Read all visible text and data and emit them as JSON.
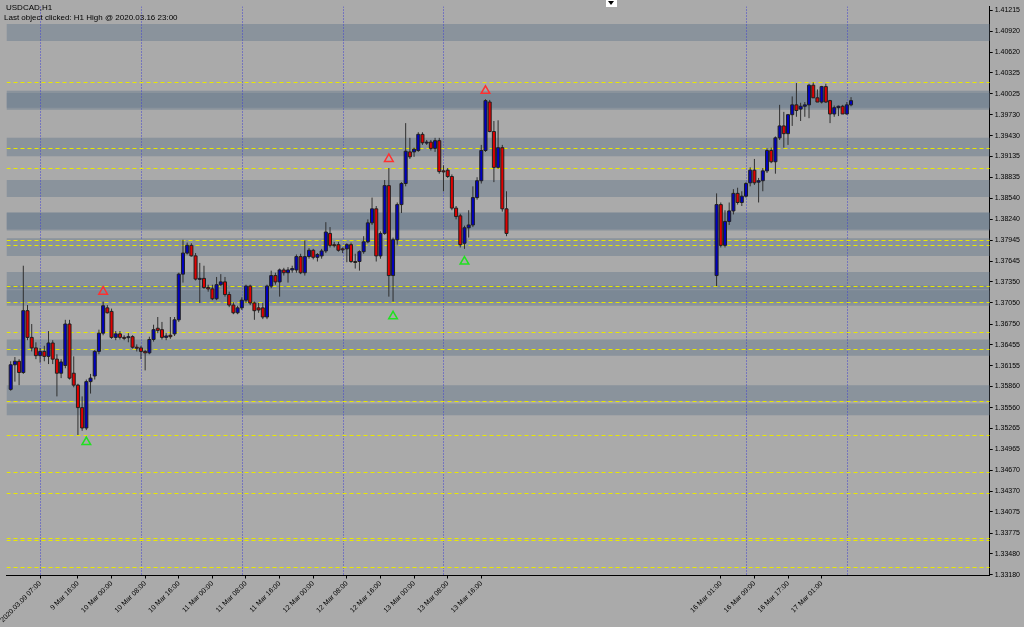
{
  "chart_data": {
    "type": "candlestick",
    "title": "USDCAD,H1",
    "subtitle": "Last object clicked: H1 High @ 2020.03.16 23:00",
    "x": [
      "2020-03-09T00:00",
      "2020-03-09T01:00",
      "2020-03-09T02:00",
      "2020-03-09T03:00",
      "2020-03-09T04:00",
      "2020-03-09T05:00",
      "2020-03-09T06:00",
      "2020-03-09T07:00",
      "2020-03-09T08:00",
      "2020-03-09T09:00",
      "2020-03-09T10:00",
      "2020-03-09T11:00",
      "2020-03-09T12:00",
      "2020-03-09T13:00",
      "2020-03-09T14:00",
      "2020-03-09T15:00",
      "2020-03-09T16:00",
      "2020-03-09T17:00",
      "2020-03-09T18:00",
      "2020-03-09T19:00",
      "2020-03-09T20:00",
      "2020-03-09T21:00",
      "2020-03-09T22:00",
      "2020-03-09T23:00",
      "2020-03-10T00:00",
      "2020-03-10T01:00",
      "2020-03-10T02:00",
      "2020-03-10T03:00",
      "2020-03-10T04:00",
      "2020-03-10T05:00",
      "2020-03-10T06:00",
      "2020-03-10T07:00",
      "2020-03-10T08:00",
      "2020-03-10T09:00",
      "2020-03-10T10:00",
      "2020-03-10T11:00",
      "2020-03-10T12:00",
      "2020-03-10T13:00",
      "2020-03-10T14:00",
      "2020-03-10T15:00",
      "2020-03-10T16:00",
      "2020-03-10T17:00",
      "2020-03-10T18:00",
      "2020-03-10T19:00",
      "2020-03-10T20:00",
      "2020-03-10T21:00",
      "2020-03-10T22:00",
      "2020-03-10T23:00",
      "2020-03-11T00:00",
      "2020-03-11T01:00",
      "2020-03-11T02:00",
      "2020-03-11T03:00",
      "2020-03-11T04:00",
      "2020-03-11T05:00",
      "2020-03-11T06:00",
      "2020-03-11T07:00",
      "2020-03-11T08:00",
      "2020-03-11T09:00",
      "2020-03-11T10:00",
      "2020-03-11T11:00",
      "2020-03-11T12:00",
      "2020-03-11T13:00",
      "2020-03-11T14:00",
      "2020-03-11T15:00",
      "2020-03-11T16:00",
      "2020-03-11T17:00",
      "2020-03-11T18:00",
      "2020-03-11T19:00",
      "2020-03-11T20:00",
      "2020-03-11T21:00",
      "2020-03-11T22:00",
      "2020-03-11T23:00",
      "2020-03-12T00:00",
      "2020-03-12T01:00",
      "2020-03-12T02:00",
      "2020-03-12T03:00",
      "2020-03-12T04:00",
      "2020-03-12T05:00",
      "2020-03-12T06:00",
      "2020-03-12T07:00",
      "2020-03-12T08:00",
      "2020-03-12T09:00",
      "2020-03-12T10:00",
      "2020-03-12T11:00",
      "2020-03-12T12:00",
      "2020-03-12T13:00",
      "2020-03-12T14:00",
      "2020-03-12T15:00",
      "2020-03-12T16:00",
      "2020-03-12T17:00",
      "2020-03-12T18:00",
      "2020-03-12T19:00",
      "2020-03-12T20:00",
      "2020-03-12T21:00",
      "2020-03-12T22:00",
      "2020-03-12T23:00",
      "2020-03-13T00:00",
      "2020-03-13T01:00",
      "2020-03-13T02:00",
      "2020-03-13T03:00",
      "2020-03-13T04:00",
      "2020-03-13T05:00",
      "2020-03-13T06:00",
      "2020-03-13T07:00",
      "2020-03-13T08:00",
      "2020-03-13T09:00",
      "2020-03-13T10:00",
      "2020-03-13T11:00",
      "2020-03-13T12:00",
      "2020-03-13T13:00",
      "2020-03-13T14:00",
      "2020-03-13T15:00",
      "2020-03-13T16:00",
      "2020-03-13T17:00",
      "2020-03-13T18:00",
      "2020-03-13T19:00",
      "2020-03-13T20:00",
      "2020-03-13T21:00",
      "2020-03-13T22:00",
      "2020-03-16T00:00",
      "2020-03-16T01:00",
      "2020-03-16T02:00",
      "2020-03-16T03:00",
      "2020-03-16T04:00",
      "2020-03-16T05:00",
      "2020-03-16T06:00",
      "2020-03-16T07:00",
      "2020-03-16T08:00",
      "2020-03-16T09:00",
      "2020-03-16T10:00",
      "2020-03-16T11:00",
      "2020-03-16T12:00",
      "2020-03-16T13:00",
      "2020-03-16T14:00",
      "2020-03-16T15:00",
      "2020-03-16T16:00",
      "2020-03-16T17:00",
      "2020-03-16T18:00",
      "2020-03-16T19:00",
      "2020-03-16T20:00",
      "2020-03-16T21:00",
      "2020-03-16T22:00",
      "2020-03-16T23:00",
      "2020-03-17T00:00",
      "2020-03-17T01:00",
      "2020-03-17T02:00",
      "2020-03-17T03:00",
      "2020-03-17T04:00",
      "2020-03-17T05:00",
      "2020-03-17T06:00",
      "2020-03-17T07:00",
      "2020-03-17T08:00"
    ],
    "ohlc": [
      [
        1.3582,
        1.3622,
        1.358,
        1.3617
      ],
      [
        1.3617,
        1.3628,
        1.3593,
        1.3622
      ],
      [
        1.3622,
        1.3625,
        1.3588,
        1.3606
      ],
      [
        1.3606,
        1.3758,
        1.3604,
        1.3694
      ],
      [
        1.3694,
        1.3702,
        1.3652,
        1.3656
      ],
      [
        1.3656,
        1.3675,
        1.3636,
        1.3641
      ],
      [
        1.3641,
        1.3649,
        1.3625,
        1.363
      ],
      [
        1.363,
        1.3641,
        1.362,
        1.3636
      ],
      [
        1.3636,
        1.3644,
        1.3622,
        1.3629
      ],
      [
        1.3629,
        1.3665,
        1.3618,
        1.3648
      ],
      [
        1.3648,
        1.3652,
        1.3618,
        1.3625
      ],
      [
        1.3625,
        1.3632,
        1.3572,
        1.3605
      ],
      [
        1.3605,
        1.3625,
        1.3598,
        1.3621
      ],
      [
        1.3616,
        1.3681,
        1.3612,
        1.3675
      ],
      [
        1.3675,
        1.3681,
        1.3596,
        1.3598
      ],
      [
        1.3605,
        1.3629,
        1.3585,
        1.3588
      ],
      [
        1.3588,
        1.359,
        1.3517,
        1.3556
      ],
      [
        1.3556,
        1.3572,
        1.3523,
        1.3527
      ],
      [
        1.3527,
        1.3596,
        1.3524,
        1.3593
      ],
      [
        1.3593,
        1.3604,
        1.3576,
        1.3598
      ],
      [
        1.3601,
        1.3638,
        1.3596,
        1.3636
      ],
      [
        1.3636,
        1.3667,
        1.3632,
        1.3662
      ],
      [
        1.3662,
        1.3707,
        1.3659,
        1.3701
      ],
      [
        1.3698,
        1.3702,
        1.369,
        1.3691
      ],
      [
        1.3693,
        1.3697,
        1.3654,
        1.3656
      ],
      [
        1.3656,
        1.3665,
        1.3652,
        1.3661
      ],
      [
        1.3661,
        1.3665,
        1.3653,
        1.3656
      ],
      [
        1.3656,
        1.3659,
        1.3652,
        1.3656
      ],
      [
        1.3656,
        1.3662,
        1.3649,
        1.3657
      ],
      [
        1.3657,
        1.3659,
        1.364,
        1.3642
      ],
      [
        1.3642,
        1.3646,
        1.3636,
        1.3641
      ],
      [
        1.3641,
        1.3644,
        1.3625,
        1.3636
      ],
      [
        1.3636,
        1.3638,
        1.3609,
        1.3634
      ],
      [
        1.3634,
        1.3657,
        1.3632,
        1.3653
      ],
      [
        1.3653,
        1.3674,
        1.365,
        1.3667
      ],
      [
        1.3669,
        1.3685,
        1.3662,
        1.3666
      ],
      [
        1.3667,
        1.3678,
        1.3653,
        1.3656
      ],
      [
        1.3656,
        1.3662,
        1.3652,
        1.3658
      ],
      [
        1.3659,
        1.3685,
        1.3654,
        1.3657
      ],
      [
        1.3661,
        1.3685,
        1.3658,
        1.3681
      ],
      [
        1.3681,
        1.3748,
        1.3678,
        1.3746
      ],
      [
        1.3746,
        1.3795,
        1.3734,
        1.3776
      ],
      [
        1.3776,
        1.3791,
        1.3774,
        1.3787
      ],
      [
        1.3787,
        1.379,
        1.3771,
        1.3772
      ],
      [
        1.3772,
        1.3776,
        1.3737,
        1.3739
      ],
      [
        1.3739,
        1.3762,
        1.3705,
        1.374
      ],
      [
        1.374,
        1.3758,
        1.3725,
        1.3727
      ],
      [
        1.3727,
        1.3731,
        1.3721,
        1.3725
      ],
      [
        1.3725,
        1.3731,
        1.3709,
        1.3711
      ],
      [
        1.3711,
        1.3742,
        1.3709,
        1.3731
      ],
      [
        1.3731,
        1.3746,
        1.3729,
        1.3735
      ],
      [
        1.3735,
        1.3742,
        1.3714,
        1.3717
      ],
      [
        1.3717,
        1.3721,
        1.3699,
        1.3702
      ],
      [
        1.3702,
        1.3706,
        1.3689,
        1.3691
      ],
      [
        1.3691,
        1.3701,
        1.3689,
        1.3698
      ],
      [
        1.3698,
        1.3713,
        1.3695,
        1.3709
      ],
      [
        1.3709,
        1.3731,
        1.3705,
        1.3729
      ],
      [
        1.3729,
        1.3731,
        1.3702,
        1.3705
      ],
      [
        1.3705,
        1.3707,
        1.3681,
        1.3694
      ],
      [
        1.3698,
        1.3705,
        1.3691,
        1.3695
      ],
      [
        1.3698,
        1.3705,
        1.3682,
        1.3685
      ],
      [
        1.3685,
        1.3731,
        1.3682,
        1.3729
      ],
      [
        1.3729,
        1.3751,
        1.3726,
        1.3744
      ],
      [
        1.3744,
        1.3748,
        1.3731,
        1.3735
      ],
      [
        1.3735,
        1.3754,
        1.3714,
        1.3752
      ],
      [
        1.3752,
        1.3755,
        1.3744,
        1.3748
      ],
      [
        1.3748,
        1.3756,
        1.3734,
        1.3752
      ],
      [
        1.3752,
        1.3758,
        1.3748,
        1.3754
      ],
      [
        1.3752,
        1.3774,
        1.3748,
        1.3771
      ],
      [
        1.3771,
        1.3775,
        1.3746,
        1.3748
      ],
      [
        1.3748,
        1.3794,
        1.3744,
        1.3771
      ],
      [
        1.3771,
        1.3783,
        1.3768,
        1.378
      ],
      [
        1.378,
        1.3782,
        1.3767,
        1.377
      ],
      [
        1.377,
        1.3776,
        1.3764,
        1.3774
      ],
      [
        1.3772,
        1.3782,
        1.3768,
        1.3779
      ],
      [
        1.3779,
        1.382,
        1.3776,
        1.3806
      ],
      [
        1.3804,
        1.3813,
        1.3784,
        1.3787
      ],
      [
        1.3788,
        1.3792,
        1.3784,
        1.3787
      ],
      [
        1.3788,
        1.3792,
        1.3778,
        1.378
      ],
      [
        1.3782,
        1.3784,
        1.3776,
        1.3782
      ],
      [
        1.3782,
        1.379,
        1.3763,
        1.3788
      ],
      [
        1.3788,
        1.3791,
        1.3762,
        1.3764
      ],
      [
        1.3764,
        1.3775,
        1.3754,
        1.3764
      ],
      [
        1.3764,
        1.378,
        1.3751,
        1.3778
      ],
      [
        1.3778,
        1.38,
        1.3775,
        1.3792
      ],
      [
        1.3792,
        1.3824,
        1.379,
        1.3819
      ],
      [
        1.3819,
        1.3855,
        1.3816,
        1.3839
      ],
      [
        1.3839,
        1.3843,
        1.3764,
        1.3772
      ],
      [
        1.3772,
        1.3807,
        1.3768,
        1.3804
      ],
      [
        1.3804,
        1.388,
        1.3802,
        1.3872
      ],
      [
        1.3872,
        1.3897,
        1.3714,
        1.3744
      ],
      [
        1.3744,
        1.3798,
        1.3707,
        1.3795
      ],
      [
        1.3795,
        1.3848,
        1.3788,
        1.3845
      ],
      [
        1.3845,
        1.3877,
        1.3833,
        1.3875
      ],
      [
        1.3875,
        1.3961,
        1.3871,
        1.3921
      ],
      [
        1.392,
        1.394,
        1.391,
        1.3913
      ],
      [
        1.392,
        1.3926,
        1.3913,
        1.3924
      ],
      [
        1.3922,
        1.3948,
        1.392,
        1.3945
      ],
      [
        1.3945,
        1.3948,
        1.393,
        1.3933
      ],
      [
        1.3933,
        1.3937,
        1.393,
        1.3934
      ],
      [
        1.3934,
        1.3937,
        1.3922,
        1.3925
      ],
      [
        1.3925,
        1.394,
        1.392,
        1.3936
      ],
      [
        1.3936,
        1.394,
        1.3889,
        1.3892
      ],
      [
        1.3893,
        1.3901,
        1.3864,
        1.3892
      ],
      [
        1.3894,
        1.3897,
        1.3883,
        1.3885
      ],
      [
        1.3885,
        1.3888,
        1.3837,
        1.384
      ],
      [
        1.384,
        1.3843,
        1.3824,
        1.3828
      ],
      [
        1.3829,
        1.3832,
        1.3784,
        1.3788
      ],
      [
        1.379,
        1.3815,
        1.3782,
        1.3812
      ],
      [
        1.3812,
        1.3837,
        1.3798,
        1.3816
      ],
      [
        1.3816,
        1.3871,
        1.3813,
        1.3855
      ],
      [
        1.3855,
        1.3884,
        1.3852,
        1.3879
      ],
      [
        1.3879,
        1.393,
        1.3875,
        1.3922
      ],
      [
        1.3922,
        1.3995,
        1.392,
        1.3993
      ],
      [
        1.3991,
        1.3994,
        1.3948,
        1.3949
      ],
      [
        1.3949,
        1.3964,
        1.3877,
        1.3898
      ],
      [
        1.3898,
        1.3965,
        1.3896,
        1.3926
      ],
      [
        1.3926,
        1.393,
        1.3835,
        1.3839
      ],
      [
        1.3839,
        1.3864,
        1.38,
        1.3804
      ],
      [
        1.3744,
        1.3861,
        1.3729,
        1.3845
      ],
      [
        1.3845,
        1.3848,
        1.3784,
        1.3787
      ],
      [
        1.3787,
        1.3837,
        1.3784,
        1.3821
      ],
      [
        1.3821,
        1.3848,
        1.3816,
        1.3836
      ],
      [
        1.3836,
        1.3867,
        1.3831,
        1.3861
      ],
      [
        1.3861,
        1.3869,
        1.3845,
        1.3848
      ],
      [
        1.3848,
        1.3864,
        1.3843,
        1.3857
      ],
      [
        1.3857,
        1.3877,
        1.3855,
        1.3875
      ],
      [
        1.3876,
        1.3898,
        1.3871,
        1.3894
      ],
      [
        1.3894,
        1.391,
        1.3873,
        1.3876
      ],
      [
        1.3877,
        1.3883,
        1.3848,
        1.3879
      ],
      [
        1.3879,
        1.3897,
        1.3864,
        1.3893
      ],
      [
        1.3893,
        1.3925,
        1.389,
        1.3922
      ],
      [
        1.3922,
        1.3926,
        1.3904,
        1.3906
      ],
      [
        1.3906,
        1.3942,
        1.3889,
        1.394
      ],
      [
        1.394,
        1.3987,
        1.3937,
        1.3957
      ],
      [
        1.3957,
        1.3977,
        1.3926,
        1.3946
      ],
      [
        1.3946,
        1.3974,
        1.393,
        1.3973
      ],
      [
        1.3973,
        1.3999,
        1.3957,
        1.3987
      ],
      [
        1.3987,
        1.4018,
        1.397,
        1.3979
      ],
      [
        1.3981,
        1.399,
        1.3964,
        1.3985
      ],
      [
        1.3985,
        1.3991,
        1.397,
        1.3987
      ],
      [
        1.3987,
        1.4017,
        1.3968,
        1.4015
      ],
      [
        1.4015,
        1.4019,
        1.3997,
        1.3997
      ],
      [
        1.3997,
        1.4009,
        1.3991,
        1.3991
      ],
      [
        1.3991,
        1.4014,
        1.3989,
        1.4013
      ],
      [
        1.4013,
        1.4017,
        1.399,
        1.3991
      ],
      [
        1.3993,
        1.3994,
        1.3961,
        1.3974
      ],
      [
        1.3974,
        1.3986,
        1.397,
        1.3983
      ],
      [
        1.3983,
        1.3986,
        1.3971,
        1.3985
      ],
      [
        1.3985,
        1.3987,
        1.3974,
        1.3974
      ],
      [
        1.3974,
        1.3991,
        1.3973,
        1.3987
      ],
      [
        1.3987,
        1.3998,
        1.3985,
        1.3993
      ]
    ],
    "colors": [
      "#0000c0",
      "#0000c0",
      "#e00000",
      "#0000c0",
      "#e00000",
      "#e00000",
      "#e00000",
      "#0000c0",
      "#e00000",
      "#0000c0",
      "#e00000",
      "#e00000",
      "#0000c0",
      "#0000c0",
      "#e00000",
      "#e00000",
      "#e00000",
      "#e00000",
      "#0000c0",
      "#0000c0",
      "#0000c0",
      "#0000c0",
      "#0000c0",
      "#e00000",
      "#e00000",
      "#0000c0",
      "#e00000",
      "#e00000",
      "#0000c0",
      "#e00000",
      "#e00000",
      "#e00000",
      "#e00000",
      "#0000c0",
      "#0000c0",
      "#e00000",
      "#e00000",
      "#0000c0",
      "#e00000",
      "#0000c0",
      "#0000c0",
      "#0000c0",
      "#0000c0",
      "#e00000",
      "#e00000",
      "#0000c0",
      "#e00000",
      "#e00000",
      "#e00000",
      "#0000c0",
      "#0000c0",
      "#e00000",
      "#e00000",
      "#e00000",
      "#0000c0",
      "#0000c0",
      "#0000c0",
      "#e00000",
      "#e00000",
      "#e00000",
      "#e00000",
      "#0000c0",
      "#0000c0",
      "#e00000",
      "#0000c0",
      "#e00000",
      "#0000c0",
      "#0000c0",
      "#0000c0",
      "#e00000",
      "#0000c0",
      "#0000c0",
      "#e00000",
      "#0000c0",
      "#0000c0",
      "#0000c0",
      "#e00000",
      "#e00000",
      "#e00000",
      "#e00000",
      "#0000c0",
      "#e00000",
      "#e00000",
      "#0000c0",
      "#0000c0",
      "#0000c0",
      "#0000c0",
      "#e00000",
      "#0000c0",
      "#0000c0",
      "#e00000",
      "#0000c0",
      "#0000c0",
      "#0000c0",
      "#0000c0",
      "#e00000",
      "#0000c0",
      "#0000c0",
      "#e00000",
      "#0000c0",
      "#e00000",
      "#0000c0",
      "#e00000",
      "#e00000",
      "#e00000",
      "#e00000",
      "#e00000",
      "#e00000",
      "#0000c0",
      "#0000c0",
      "#0000c0",
      "#0000c0",
      "#0000c0",
      "#0000c0",
      "#e00000",
      "#e00000",
      "#0000c0",
      "#e00000",
      "#e00000",
      "#0000c0",
      "#e00000",
      "#0000c0",
      "#0000c0",
      "#0000c0",
      "#e00000",
      "#0000c0",
      "#0000c0",
      "#0000c0",
      "#e00000",
      "#0000c0",
      "#0000c0",
      "#0000c0",
      "#e00000",
      "#0000c0",
      "#0000c0",
      "#e00000",
      "#0000c0",
      "#0000c0",
      "#e00000",
      "#0000c0",
      "#0000c0",
      "#0000c0",
      "#e00000",
      "#e00000",
      "#0000c0",
      "#e00000",
      "#e00000",
      "#0000c0",
      "#0000c0",
      "#e00000",
      "#0000c0",
      "#0000c0"
    ],
    "series": [
      {
        "type": "scatter",
        "color": "#ff3030",
        "marker": "triangle",
        "x": [
          "2020-03-09T22:00",
          "2020-03-12T18:00",
          "2020-03-13T17:00"
        ],
        "values": [
          1.3721,
          1.391,
          1.4007
        ]
      },
      {
        "type": "scatter",
        "color": "#20e020",
        "marker": "triangle",
        "x": [
          "2020-03-09T18:00",
          "2020-03-12T19:00",
          "2020-03-13T12:00"
        ],
        "values": [
          1.3507,
          1.3686,
          1.3764
        ]
      }
    ],
    "xlim": [
      "2020-03-08T23:00",
      "2020-03-18T17:00"
    ],
    "xticks": [
      {
        "value": "2020-03-09T07:00",
        "label": "2020.03.09 07:00"
      },
      {
        "value": "2020-03-09T16:00",
        "label": "9 Mar 16:00"
      },
      {
        "value": "2020-03-10T00:00",
        "label": "10 Mar 00:00"
      },
      {
        "value": "2020-03-10T08:00",
        "label": "10 Mar 08:00"
      },
      {
        "value": "2020-03-10T16:00",
        "label": "10 Mar 16:00"
      },
      {
        "value": "2020-03-11T00:00",
        "label": "11 Mar 00:00"
      },
      {
        "value": "2020-03-11T08:00",
        "label": "11 Mar 08:00"
      },
      {
        "value": "2020-03-11T16:00",
        "label": "11 Mar 16:00"
      },
      {
        "value": "2020-03-12T00:00",
        "label": "12 Mar 00:00"
      },
      {
        "value": "2020-03-12T08:00",
        "label": "12 Mar 08:00"
      },
      {
        "value": "2020-03-12T16:00",
        "label": "12 Mar 16:00"
      },
      {
        "value": "2020-03-13T00:00",
        "label": "13 Mar 00:00"
      },
      {
        "value": "2020-03-13T08:00",
        "label": "13 Mar 08:00"
      },
      {
        "value": "2020-03-13T16:00",
        "label": "13 Mar 16:00"
      },
      {
        "value": "2020-03-16T01:00",
        "label": "16 Mar 01:00"
      },
      {
        "value": "2020-03-16T09:00",
        "label": "16 Mar 09:00"
      },
      {
        "value": "2020-03-16T17:00",
        "label": "16 Mar 17:00"
      },
      {
        "value": "2020-03-17T01:00",
        "label": "17 Mar 01:00"
      }
    ],
    "ylim": [
      1.3317,
      1.4127
    ],
    "yticks": [
      1.41215,
      {
        "value": 1.4092,
        "label": "1.40920"
      },
      {
        "value": 1.4062,
        "label": "1.40620"
      },
      1.40325,
      {
        "value": 1.40025,
        "label": "1.40025"
      },
      {
        "value": 1.3973,
        "label": "1.39730"
      },
      {
        "value": 1.3943,
        "label": "1.39430"
      },
      1.39135,
      1.38835,
      {
        "value": 1.3854,
        "label": "1.38540"
      },
      {
        "value": 1.3824,
        "label": "1.38240"
      },
      1.37945,
      1.37645,
      {
        "value": 1.3735,
        "label": "1.37350"
      },
      {
        "value": 1.3705,
        "label": "1.37050"
      },
      {
        "value": 1.3675,
        "label": "1.36750"
      },
      1.36455,
      1.36155,
      {
        "value": 1.3586,
        "label": "1.35860"
      },
      {
        "value": 1.3556,
        "label": "1.35560"
      },
      1.35265,
      1.34965,
      {
        "value": 1.3467,
        "label": "1.34670"
      },
      {
        "value": 1.3437,
        "label": "1.34370"
      },
      1.34075,
      1.33775,
      {
        "value": 1.3348,
        "label": "1.33480"
      },
      {
        "value": 1.3318,
        "label": "1.33180"
      }
    ],
    "ref_lines": [
      {
        "axis": "x",
        "value": "2020-03-09T07:00",
        "color": "#4040d0",
        "line_style": "dotted"
      },
      {
        "axis": "x",
        "value": "2020-03-10T07:00",
        "color": "#4040d0",
        "line_style": "dotted"
      },
      {
        "axis": "x",
        "value": "2020-03-11T07:00",
        "color": "#4040d0",
        "line_style": "dotted"
      },
      {
        "axis": "x",
        "value": "2020-03-12T07:00",
        "color": "#4040d0",
        "line_style": "dotted"
      },
      {
        "axis": "x",
        "value": "2020-03-13T07:00",
        "color": "#4040d0",
        "line_style": "dotted"
      },
      {
        "axis": "x",
        "value": "2020-03-16T07:00",
        "color": "#4040d0",
        "line_style": "dotted"
      },
      {
        "axis": "x",
        "value": "2020-03-17T07:00",
        "color": "#4040d0",
        "line_style": "dotted"
      },
      {
        "axis": "y",
        "value": 1.4019,
        "color": "#e8e800",
        "line_style": "dashed"
      },
      {
        "axis": "y",
        "value": 1.3925,
        "color": "#e8e800",
        "line_style": "dashed"
      },
      {
        "axis": "y",
        "value": 1.3897,
        "color": "#e8e800",
        "line_style": "dashed"
      },
      {
        "axis": "y",
        "value": 1.3794,
        "color": "#e8e800",
        "line_style": "dashed"
      },
      {
        "axis": "y",
        "value": 1.3787,
        "color": "#e8e800",
        "line_style": "dashed"
      },
      {
        "axis": "y",
        "value": 1.3729,
        "color": "#e8e800",
        "line_style": "dashed"
      },
      {
        "axis": "y",
        "value": 1.3706,
        "color": "#e8e800",
        "line_style": "dashed"
      },
      {
        "axis": "y",
        "value": 1.3664,
        "color": "#e8e800",
        "line_style": "dashed"
      },
      {
        "axis": "y",
        "value": 1.364,
        "color": "#e8e800",
        "line_style": "dashed"
      },
      {
        "axis": "y",
        "value": 1.3565,
        "color": "#e8e800",
        "line_style": "dashed"
      },
      {
        "axis": "y",
        "value": 1.3517,
        "color": "#e8e800",
        "line_style": "dashed"
      },
      {
        "axis": "y",
        "value": 1.3464,
        "color": "#e8e800",
        "line_style": "dashed"
      },
      {
        "axis": "y",
        "value": 1.3434,
        "color": "#e8e800",
        "line_style": "dashed"
      },
      {
        "axis": "y",
        "value": 1.3371,
        "color": "#e8e800",
        "line_style": "dashed"
      },
      {
        "axis": "y",
        "value": 1.3367,
        "color": "#e8e800",
        "line_style": "dashed"
      },
      {
        "axis": "y",
        "value": 1.3329,
        "color": "#e8e800",
        "line_style": "dashed"
      }
    ],
    "bands": [
      {
        "axis": "y",
        "from": 1.3706,
        "to": 1.373,
        "color": "#708090"
      },
      {
        "axis": "y",
        "from": 1.3545,
        "to": 1.3562,
        "color": "#708090"
      },
      {
        "axis": "y",
        "from": 1.3701,
        "to": 1.3723,
        "color": "#708090"
      },
      {
        "axis": "y",
        "from": 1.3565,
        "to": 1.3588,
        "color": "#708090"
      },
      {
        "axis": "y",
        "from": 1.3772,
        "to": 1.3797,
        "color": "#708090"
      },
      {
        "axis": "y",
        "from": 1.363,
        "to": 1.3653,
        "color": "#708090"
      },
      {
        "axis": "y",
        "from": 1.3856,
        "to": 1.388,
        "color": "#708090"
      },
      {
        "axis": "y",
        "from": 1.3725,
        "to": 1.3749,
        "color": "#708090"
      },
      {
        "axis": "y",
        "from": 1.3983,
        "to": 1.4007,
        "color": "#708090"
      },
      {
        "axis": "y",
        "from": 1.3808,
        "to": 1.3833,
        "color": "#708090"
      },
      {
        "axis": "y",
        "from": 1.398,
        "to": 1.4004,
        "color": "#708090"
      },
      {
        "axis": "y",
        "from": 1.381,
        "to": 1.3834,
        "color": "#708090"
      },
      {
        "axis": "y",
        "from": 1.4078,
        "to": 1.4102,
        "color": "#708090"
      },
      {
        "axis": "y",
        "from": 1.3914,
        "to": 1.394,
        "color": "#708090"
      }
    ]
  }
}
